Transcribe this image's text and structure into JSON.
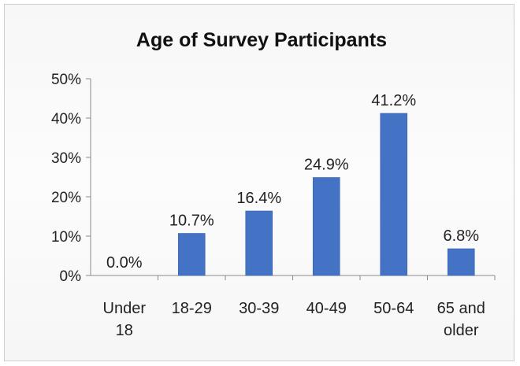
{
  "chart_data": {
    "type": "bar",
    "title": "Age of Survey Participants",
    "categories": [
      "Under 18",
      "18-29",
      "30-39",
      "40-49",
      "50-64",
      "65 and older"
    ],
    "values": [
      0.0,
      10.7,
      16.4,
      24.9,
      41.2,
      6.8
    ],
    "value_labels": [
      "0.0%",
      "10.7%",
      "16.4%",
      "24.9%",
      "41.2%",
      "6.8%"
    ],
    "ylim": [
      0,
      50
    ],
    "yticks": [
      0,
      10,
      20,
      30,
      40,
      50
    ],
    "ytick_labels": [
      "0%",
      "10%",
      "20%",
      "30%",
      "40%",
      "50%"
    ],
    "xlabel": "",
    "ylabel": "",
    "grid": false,
    "legend": "none",
    "bar_color": "#4472c4"
  }
}
